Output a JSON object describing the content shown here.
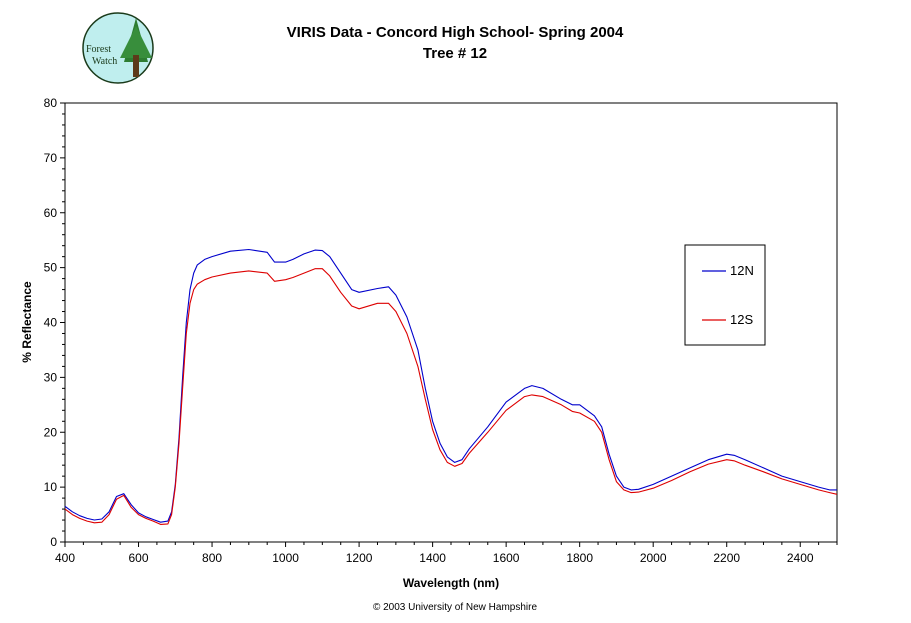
{
  "logo": {
    "line1": "Forest",
    "line2": "Watch"
  },
  "footer": {
    "copyright": "© 2003 University of New Hampshire"
  },
  "colors": {
    "series_12N": "#0000cc",
    "series_12S": "#dd0000",
    "background": "#ffffff"
  },
  "chart_data": {
    "type": "line",
    "title": "VIRIS Data - Concord High School- Spring 2004",
    "subtitle": "Tree # 12",
    "xlabel": "Wavelength (nm)",
    "ylabel": "% Reflectance",
    "xlim": [
      400,
      2500
    ],
    "ylim": [
      0,
      80
    ],
    "xticks": [
      400,
      600,
      800,
      1000,
      1200,
      1400,
      1600,
      1800,
      2000,
      2200,
      2400
    ],
    "yticks": [
      0,
      10,
      20,
      30,
      40,
      50,
      60,
      70,
      80
    ],
    "grid": false,
    "legend_position": "right",
    "series": [
      {
        "name": "12N",
        "x": [
          400,
          420,
          440,
          460,
          480,
          500,
          520,
          540,
          560,
          580,
          600,
          620,
          640,
          660,
          680,
          690,
          700,
          710,
          720,
          730,
          740,
          750,
          760,
          780,
          800,
          850,
          900,
          950,
          970,
          1000,
          1020,
          1050,
          1080,
          1100,
          1120,
          1150,
          1180,
          1200,
          1250,
          1280,
          1300,
          1330,
          1360,
          1380,
          1400,
          1420,
          1440,
          1460,
          1480,
          1500,
          1550,
          1600,
          1650,
          1670,
          1700,
          1750,
          1780,
          1800,
          1840,
          1860,
          1880,
          1900,
          1920,
          1940,
          1960,
          2000,
          2050,
          2100,
          2150,
          2200,
          2220,
          2250,
          2300,
          2350,
          2400,
          2450,
          2480,
          2500
        ],
        "y": [
          6.5,
          5.5,
          4.8,
          4.3,
          4.0,
          4.2,
          5.5,
          8.3,
          8.8,
          6.8,
          5.3,
          4.6,
          4.1,
          3.6,
          3.8,
          5.5,
          10.5,
          19,
          30,
          40,
          46,
          49,
          50.5,
          51.5,
          52,
          53,
          53.3,
          52.8,
          51,
          51,
          51.5,
          52.5,
          53.2,
          53.1,
          52,
          49,
          46,
          45.5,
          46.2,
          46.5,
          45,
          41,
          35,
          28,
          22,
          18,
          15.5,
          14.5,
          15,
          17,
          21,
          25.5,
          28,
          28.5,
          28,
          26,
          25,
          25,
          23,
          21,
          16,
          12,
          10,
          9.5,
          9.6,
          10.5,
          12,
          13.5,
          15,
          16,
          15.8,
          15,
          13.5,
          12,
          11,
          10,
          9.5,
          9.5
        ]
      },
      {
        "name": "12S",
        "x": [
          400,
          420,
          440,
          460,
          480,
          500,
          520,
          540,
          560,
          580,
          600,
          620,
          640,
          660,
          680,
          690,
          700,
          710,
          720,
          730,
          740,
          750,
          760,
          780,
          800,
          850,
          900,
          950,
          970,
          1000,
          1020,
          1050,
          1080,
          1100,
          1120,
          1150,
          1180,
          1200,
          1250,
          1280,
          1300,
          1330,
          1360,
          1380,
          1400,
          1420,
          1440,
          1460,
          1480,
          1500,
          1550,
          1600,
          1650,
          1670,
          1700,
          1750,
          1780,
          1800,
          1840,
          1860,
          1880,
          1900,
          1920,
          1940,
          1960,
          2000,
          2050,
          2100,
          2150,
          2200,
          2220,
          2250,
          2300,
          2350,
          2400,
          2450,
          2480,
          2500
        ],
        "y": [
          6.0,
          5.0,
          4.3,
          3.8,
          3.5,
          3.6,
          5.0,
          7.8,
          8.5,
          6.3,
          5.0,
          4.3,
          3.8,
          3.2,
          3.3,
          5.0,
          10,
          18,
          28,
          38,
          43.5,
          46,
          47,
          47.8,
          48.3,
          49,
          49.4,
          49,
          47.5,
          47.8,
          48.2,
          49,
          49.8,
          49.8,
          48.5,
          45.5,
          43,
          42.5,
          43.5,
          43.5,
          42,
          38,
          32,
          26,
          20.5,
          16.8,
          14.5,
          13.8,
          14.3,
          16.2,
          20,
          24,
          26.5,
          26.8,
          26.5,
          25,
          23.8,
          23.5,
          22,
          20,
          15,
          11,
          9.5,
          9.0,
          9.1,
          9.8,
          11.2,
          12.8,
          14.2,
          15,
          14.8,
          14,
          12.8,
          11.5,
          10.5,
          9.5,
          9.0,
          8.7
        ]
      }
    ]
  }
}
